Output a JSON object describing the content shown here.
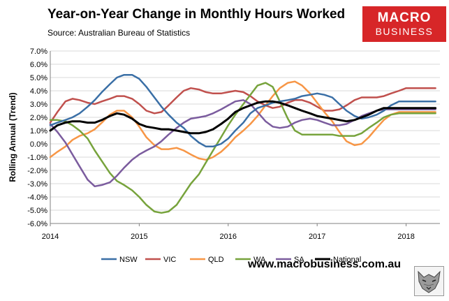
{
  "header": {
    "title": "Year-on-Year Change in Monthly Hours Worked",
    "source": "Source: Australian Bureau of Statistics"
  },
  "logo": {
    "line1": "MACRO",
    "line2": "BUSINESS"
  },
  "footer": {
    "website": "www.macrobusiness.com.au"
  },
  "colors": {
    "brand": "#d72628"
  },
  "chart_data": {
    "type": "line",
    "title": "",
    "xlabel": "",
    "ylabel": "Rolling Annual (Trend)",
    "xlim": [
      2014.0,
      2018.38
    ],
    "ylim": [
      -6,
      7
    ],
    "x_ticks": [
      2014,
      2015,
      2016,
      2017,
      2018
    ],
    "x_tick_labels": [
      "2014",
      "2015",
      "2016",
      "2017",
      "2018"
    ],
    "y_ticks": [
      -6,
      -5,
      -4,
      -3,
      -2,
      -1,
      0,
      1,
      2,
      3,
      4,
      5,
      6,
      7
    ],
    "y_tick_labels": [
      "-6.0%",
      "-5.0%",
      "-4.0%",
      "-3.0%",
      "-2.0%",
      "-1.0%",
      "0.0%",
      "1.0%",
      "2.0%",
      "3.0%",
      "4.0%",
      "5.0%",
      "6.0%",
      "7.0%"
    ],
    "grid": "horizontal",
    "legend_position": "bottom",
    "x": [
      2014.0,
      2014.08,
      2014.17,
      2014.25,
      2014.33,
      2014.42,
      2014.5,
      2014.58,
      2014.67,
      2014.75,
      2014.83,
      2014.92,
      2015.0,
      2015.08,
      2015.17,
      2015.25,
      2015.33,
      2015.42,
      2015.5,
      2015.58,
      2015.67,
      2015.75,
      2015.83,
      2015.92,
      2016.0,
      2016.08,
      2016.17,
      2016.25,
      2016.33,
      2016.42,
      2016.5,
      2016.58,
      2016.67,
      2016.75,
      2016.83,
      2016.92,
      2017.0,
      2017.08,
      2017.17,
      2017.25,
      2017.33,
      2017.42,
      2017.5,
      2017.58,
      2017.67,
      2017.75,
      2017.83,
      2017.92,
      2018.0,
      2018.08,
      2018.17,
      2018.25,
      2018.33
    ],
    "series": [
      {
        "name": "NSW",
        "color": "#3a6fa6",
        "values": [
          1.4,
          1.6,
          1.8,
          2.0,
          2.3,
          2.8,
          3.3,
          3.9,
          4.5,
          5.0,
          5.2,
          5.2,
          4.9,
          4.3,
          3.5,
          2.8,
          2.2,
          1.6,
          1.2,
          0.6,
          0.1,
          -0.2,
          -0.2,
          0.0,
          0.4,
          1.0,
          1.6,
          2.3,
          2.7,
          2.9,
          3.1,
          3.2,
          3.3,
          3.4,
          3.6,
          3.7,
          3.8,
          3.7,
          3.5,
          3.0,
          2.5,
          2.1,
          1.9,
          2.0,
          2.2,
          2.5,
          2.9,
          3.2,
          3.2,
          3.2,
          3.2,
          3.2,
          3.2
        ]
      },
      {
        "name": "VIC",
        "color": "#c0504d",
        "values": [
          1.6,
          2.4,
          3.2,
          3.4,
          3.3,
          3.1,
          3.0,
          3.2,
          3.4,
          3.6,
          3.6,
          3.4,
          3.0,
          2.5,
          2.3,
          2.4,
          2.9,
          3.5,
          4.0,
          4.2,
          4.1,
          3.9,
          3.8,
          3.8,
          3.9,
          4.0,
          3.9,
          3.6,
          3.2,
          2.9,
          2.7,
          2.8,
          3.1,
          3.3,
          3.3,
          3.1,
          2.8,
          2.5,
          2.5,
          2.6,
          2.9,
          3.3,
          3.5,
          3.5,
          3.5,
          3.6,
          3.8,
          4.0,
          4.2,
          4.2,
          4.2,
          4.2,
          4.2
        ]
      },
      {
        "name": "QLD",
        "color": "#f79646",
        "values": [
          -1.0,
          -0.6,
          -0.2,
          0.3,
          0.6,
          0.8,
          1.1,
          1.6,
          2.2,
          2.5,
          2.5,
          2.0,
          1.3,
          0.5,
          -0.1,
          -0.4,
          -0.4,
          -0.3,
          -0.5,
          -0.8,
          -1.1,
          -1.2,
          -1.0,
          -0.6,
          -0.1,
          0.5,
          1.0,
          1.5,
          2.1,
          2.9,
          3.6,
          4.2,
          4.6,
          4.7,
          4.4,
          3.8,
          3.1,
          2.4,
          1.7,
          0.9,
          0.2,
          -0.1,
          0.0,
          0.5,
          1.2,
          1.8,
          2.2,
          2.4,
          2.4,
          2.4,
          2.4,
          2.4,
          2.4
        ]
      },
      {
        "name": "WA",
        "color": "#77a33c",
        "values": [
          1.8,
          1.8,
          1.7,
          1.4,
          1.0,
          0.4,
          -0.5,
          -1.3,
          -2.2,
          -2.8,
          -3.1,
          -3.5,
          -4.0,
          -4.6,
          -5.1,
          -5.2,
          -5.1,
          -4.6,
          -3.8,
          -3.0,
          -2.3,
          -1.4,
          -0.5,
          0.5,
          1.4,
          2.2,
          3.0,
          3.7,
          4.4,
          4.6,
          4.3,
          3.2,
          1.9,
          1.0,
          0.7,
          0.7,
          0.7,
          0.7,
          0.7,
          0.6,
          0.6,
          0.6,
          0.8,
          1.2,
          1.6,
          2.0,
          2.2,
          2.3,
          2.3,
          2.3,
          2.3,
          2.3,
          2.3
        ]
      },
      {
        "name": "SA",
        "color": "#7b5c9e",
        "values": [
          1.5,
          0.9,
          0.1,
          -0.8,
          -1.7,
          -2.7,
          -3.2,
          -3.1,
          -2.9,
          -2.4,
          -1.8,
          -1.2,
          -0.8,
          -0.5,
          -0.2,
          0.2,
          0.7,
          1.2,
          1.6,
          1.9,
          2.0,
          2.1,
          2.3,
          2.6,
          2.9,
          3.2,
          3.3,
          3.0,
          2.4,
          1.7,
          1.3,
          1.2,
          1.3,
          1.6,
          1.8,
          1.9,
          1.8,
          1.6,
          1.4,
          1.4,
          1.5,
          1.8,
          2.1,
          2.3,
          2.5,
          2.6,
          2.6,
          2.6,
          2.6,
          2.6,
          2.6,
          2.6,
          2.6
        ]
      },
      {
        "name": "National",
        "color": "#000000",
        "values": [
          1.0,
          1.4,
          1.6,
          1.7,
          1.7,
          1.6,
          1.6,
          1.8,
          2.1,
          2.3,
          2.2,
          1.9,
          1.5,
          1.3,
          1.2,
          1.1,
          1.1,
          1.0,
          0.9,
          0.8,
          0.8,
          0.9,
          1.1,
          1.5,
          1.9,
          2.4,
          2.7,
          2.9,
          3.1,
          3.2,
          3.2,
          3.1,
          2.9,
          2.7,
          2.5,
          2.3,
          2.1,
          2.0,
          1.9,
          1.8,
          1.7,
          1.8,
          2.0,
          2.2,
          2.5,
          2.7,
          2.7,
          2.7,
          2.7,
          2.7,
          2.7,
          2.7,
          2.7
        ]
      }
    ]
  }
}
